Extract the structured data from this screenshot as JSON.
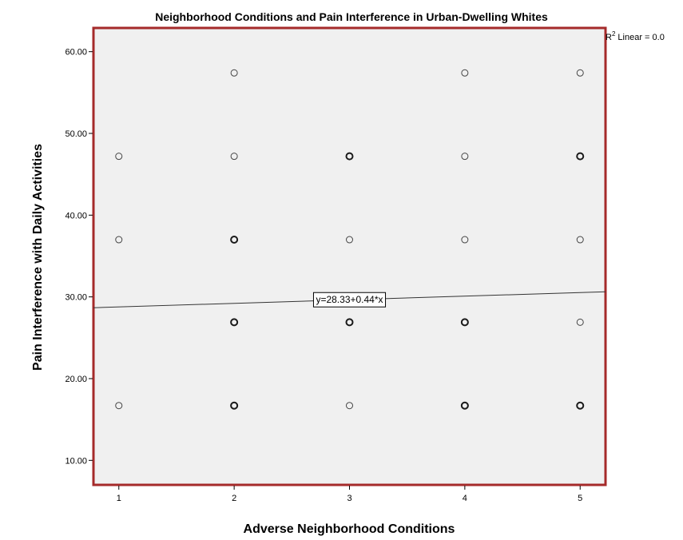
{
  "chart_data": {
    "type": "scatter",
    "title": "Neighborhood Conditions and Pain Interference in Urban-Dwelling Whites",
    "xlabel": "Adverse Neighborhood Conditions",
    "ylabel": "Pain Interference with Daily Activities",
    "xlim": [
      0.78,
      5.22
    ],
    "ylim": [
      7.0,
      62.9
    ],
    "xticks": [
      "1",
      "2",
      "3",
      "4",
      "5"
    ],
    "yticks": [
      "10.00",
      "20.00",
      "30.00",
      "40.00",
      "50.00",
      "60.00"
    ],
    "grid": false,
    "points": [
      {
        "x": 1,
        "y": 47.2,
        "weight": "light"
      },
      {
        "x": 1,
        "y": 37.0,
        "weight": "light"
      },
      {
        "x": 1,
        "y": 16.7,
        "weight": "light"
      },
      {
        "x": 2,
        "y": 57.4,
        "weight": "light"
      },
      {
        "x": 2,
        "y": 47.2,
        "weight": "light"
      },
      {
        "x": 2,
        "y": 37.0,
        "weight": "heavy"
      },
      {
        "x": 2,
        "y": 26.9,
        "weight": "heavy"
      },
      {
        "x": 2,
        "y": 16.7,
        "weight": "heavy"
      },
      {
        "x": 3,
        "y": 47.2,
        "weight": "heavy"
      },
      {
        "x": 3,
        "y": 37.0,
        "weight": "light"
      },
      {
        "x": 3,
        "y": 26.9,
        "weight": "heavy"
      },
      {
        "x": 3,
        "y": 16.7,
        "weight": "light"
      },
      {
        "x": 4,
        "y": 57.4,
        "weight": "light"
      },
      {
        "x": 4,
        "y": 47.2,
        "weight": "light"
      },
      {
        "x": 4,
        "y": 37.0,
        "weight": "light"
      },
      {
        "x": 4,
        "y": 26.9,
        "weight": "heavy"
      },
      {
        "x": 4,
        "y": 16.7,
        "weight": "heavy"
      },
      {
        "x": 5,
        "y": 57.4,
        "weight": "light"
      },
      {
        "x": 5,
        "y": 47.2,
        "weight": "heavy"
      },
      {
        "x": 5,
        "y": 37.0,
        "weight": "light"
      },
      {
        "x": 5,
        "y": 26.9,
        "weight": "light"
      },
      {
        "x": 5,
        "y": 16.7,
        "weight": "heavy"
      }
    ],
    "fit_line": {
      "intercept": 28.33,
      "slope": 0.44,
      "label": "y=28.33+0.44*x",
      "label_x": 3.0
    },
    "r2_label": "Linear = 0.0"
  },
  "colors": {
    "plot_background": "#f0f0f0",
    "plot_border": "#a52a2a",
    "marker_stroke": "#1a1a1a",
    "fit_line": "#333333"
  }
}
